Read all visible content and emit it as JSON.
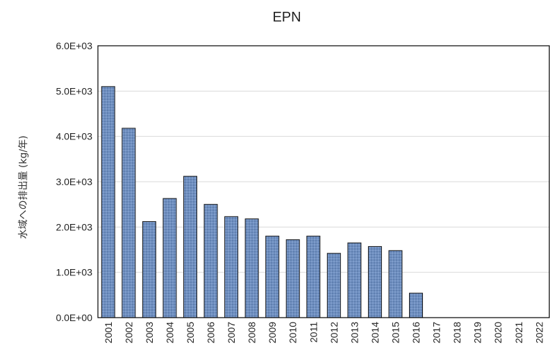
{
  "chart_data": {
    "type": "bar",
    "title": "EPN",
    "ylabel": "水域への排出量 (kg/年)",
    "xlabel": "",
    "categories": [
      "2001",
      "2002",
      "2003",
      "2004",
      "2005",
      "2006",
      "2007",
      "2008",
      "2009",
      "2010",
      "2011",
      "2012",
      "2013",
      "2014",
      "2015",
      "2016",
      "2017",
      "2018",
      "2019",
      "2020",
      "2021",
      "2022"
    ],
    "values": [
      5100,
      4180,
      2120,
      2630,
      3120,
      2500,
      2230,
      2180,
      1800,
      1720,
      1800,
      1420,
      1650,
      1570,
      1480,
      540,
      0,
      0,
      0,
      0,
      0,
      0
    ],
    "ylim": [
      0,
      6000
    ],
    "yticks": [
      "0.0E+00",
      "1.0E+03",
      "2.0E+03",
      "3.0E+03",
      "4.0E+03",
      "5.0E+03",
      "6.0E+03"
    ],
    "grid": true,
    "bar_color": "#6f8fbf"
  }
}
